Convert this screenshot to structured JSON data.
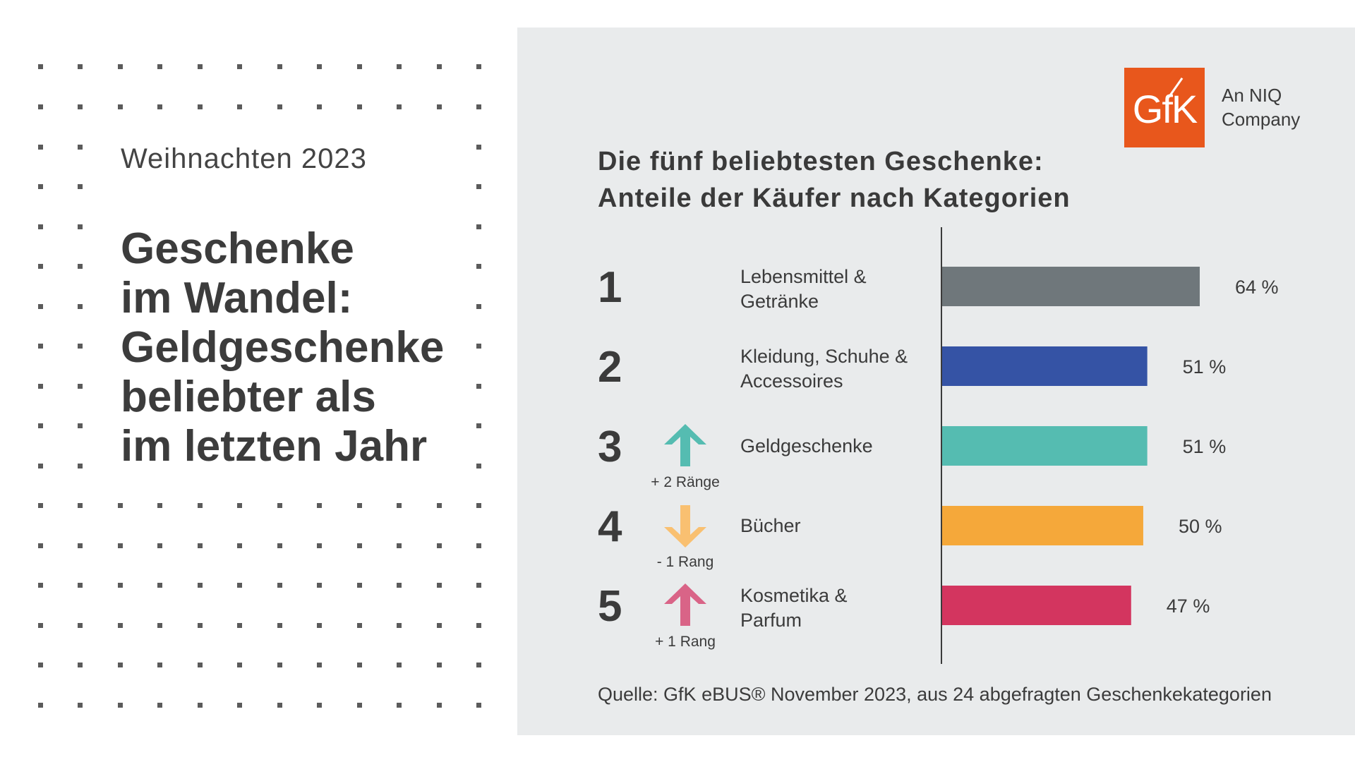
{
  "left": {
    "kicker": "Weihnachten 2023",
    "headline": [
      "Geschenke",
      "im Wandel:",
      "Geldgeschenke",
      "beliebter als",
      "im letzten Jahr"
    ]
  },
  "logo": {
    "mark": "GfK",
    "caption_line1": "An NIQ",
    "caption_line2": "Company",
    "color": "#e8571c"
  },
  "chart_title": {
    "line1": "Die fünf beliebtesten Geschenke:",
    "line2": "Anteile der Käufer nach Kategorien"
  },
  "chart_data": {
    "type": "bar",
    "orientation": "horizontal",
    "unit": "%",
    "xlim": [
      0,
      100
    ],
    "categories": [
      {
        "rank": "1",
        "label_lines": [
          "Lebensmittel &",
          "Getränke"
        ],
        "value": 64,
        "value_label": "64 %",
        "color": "#6f777b",
        "change": null
      },
      {
        "rank": "2",
        "label_lines": [
          "Kleidung, Schuhe &",
          "Accessoires"
        ],
        "value": 51,
        "value_label": "51 %",
        "color": "#3553a5",
        "change": null
      },
      {
        "rank": "3",
        "label_lines": [
          "Geldgeschenke"
        ],
        "value": 51,
        "value_label": "51 %",
        "color": "#55bcb1",
        "change": {
          "direction": "up",
          "label": "+ 2 Ränge",
          "color": "#55bcb1"
        }
      },
      {
        "rank": "4",
        "label_lines": [
          "Bücher"
        ],
        "value": 50,
        "value_label": "50 %",
        "color": "#f5a83a",
        "change": {
          "direction": "down",
          "label": "- 1 Rang",
          "color": "#f9c071"
        }
      },
      {
        "rank": "5",
        "label_lines": [
          "Kosmetika &",
          "Parfum"
        ],
        "value": 47,
        "value_label": "47 %",
        "color": "#d3355f",
        "change": {
          "direction": "up",
          "label": "+ 1 Rang",
          "color": "#d96487"
        }
      }
    ]
  },
  "source": "Quelle:  GfK eBUS® November 2023, aus 24 abgefragten Geschenkekategorien"
}
